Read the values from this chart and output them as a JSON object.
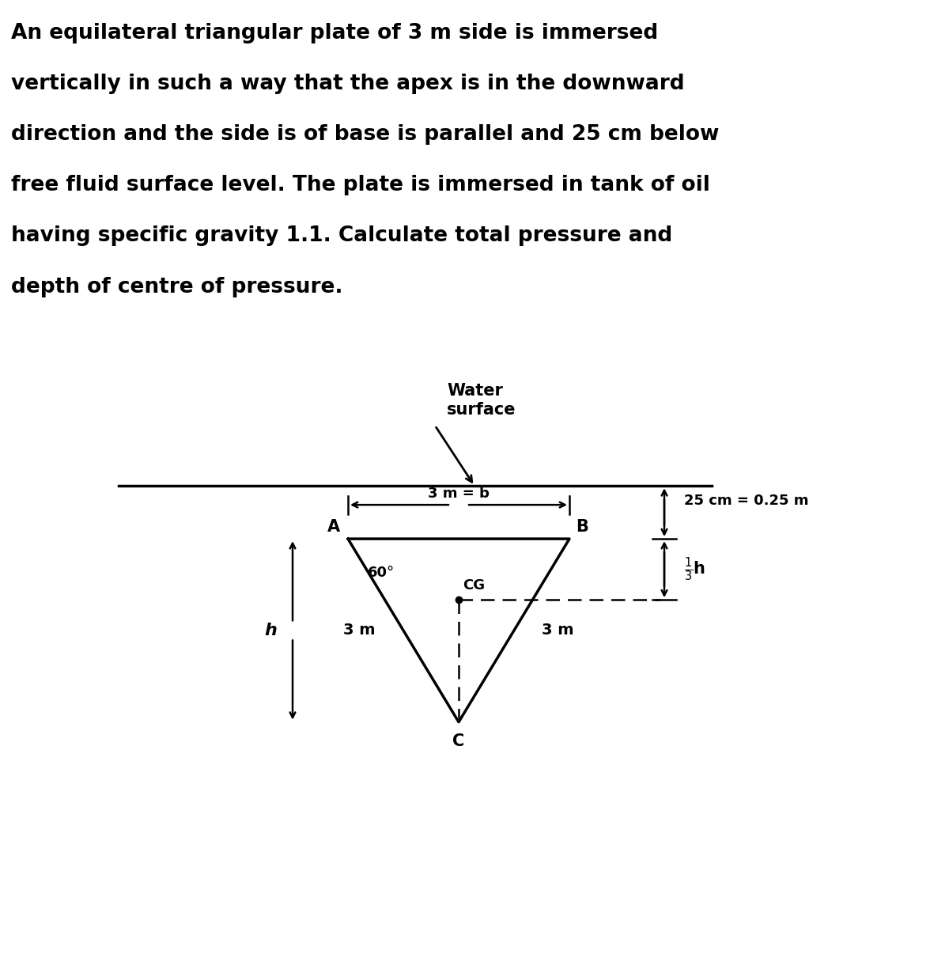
{
  "title_lines": [
    "An equilateral triangular plate of 3 m side is immersed",
    "vertically in such a way that the apex is in the downward",
    "direction and the side is of base is parallel and 25 cm below",
    "free fluid surface level. The plate is immersed in tank of oil",
    "having specific gravity 1.1. Calculate total pressure and",
    "depth of centre of pressure."
  ],
  "title_bg_color": "#aaaaaa",
  "title_text_color": "#000000",
  "title_fontsize": 19,
  "fig_bg_color": "#ffffff",
  "water_surface_label": "Water\nsurface",
  "dim_25cm_label": "25 cm = 0.25 m",
  "dim_3m_b_label": "3 m = b",
  "label_A": "A",
  "label_B": "B",
  "label_C": "C",
  "label_CG": "CG",
  "label_h": "h",
  "label_60deg": "60°",
  "label_3m_left": "3 m",
  "label_3m_right": "3 m",
  "triangle_color": "#000000",
  "line_color": "#000000",
  "dashed_color": "#000000"
}
